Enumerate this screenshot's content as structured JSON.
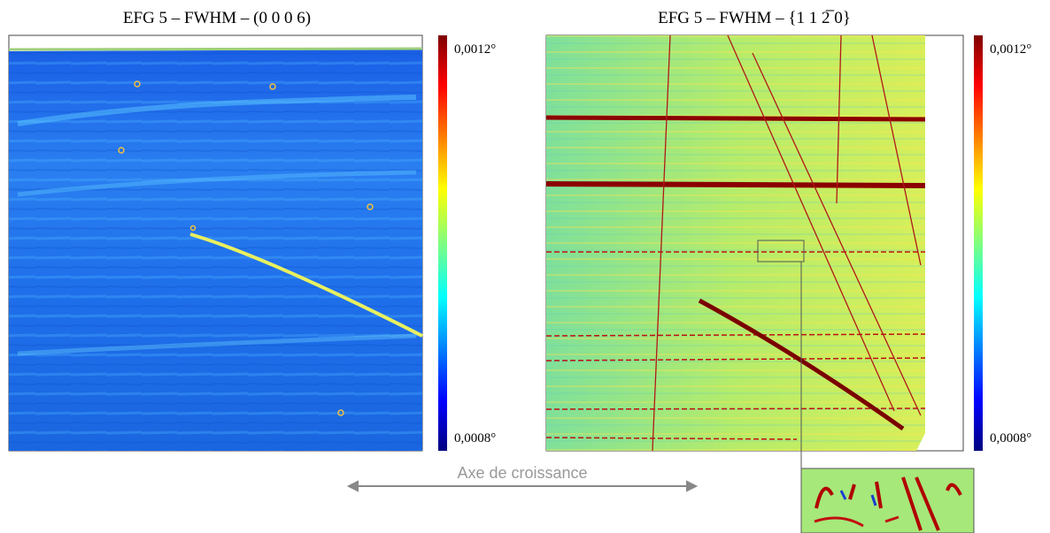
{
  "panels": [
    {
      "title": "EFG 5 – FWHM – (0 0 0 6)",
      "colorbar": {
        "max": "0,0012°",
        "min": "0,0008°"
      }
    },
    {
      "title": "EFG 5 – FWHM – {1 1 2̅ 0}",
      "colorbar": {
        "max": "0,0012°",
        "min": "0,0008°"
      }
    }
  ],
  "arrow_label": "Axe de croissance"
}
